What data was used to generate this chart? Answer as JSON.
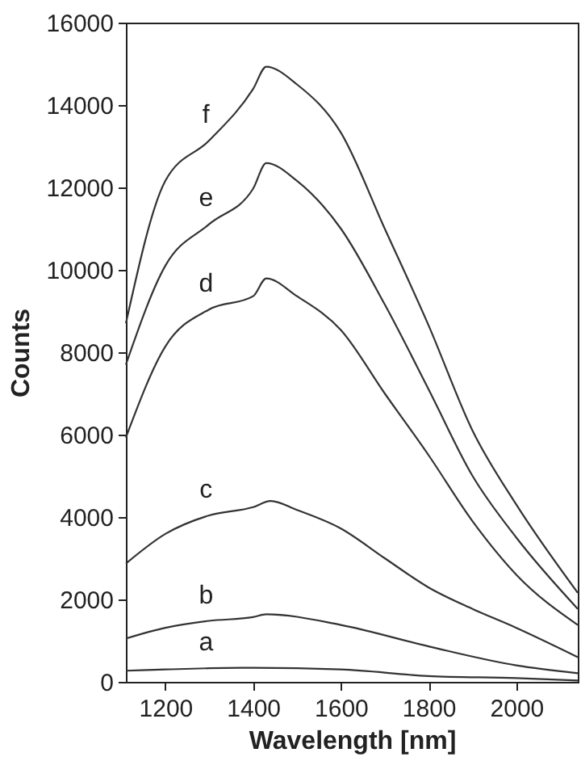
{
  "chart_data": {
    "type": "line",
    "xlabel": "Wavelength [nm]",
    "ylabel": "Counts",
    "xlim": [
      1110,
      2140
    ],
    "ylim": [
      0,
      16000
    ],
    "xticks": [
      1200,
      1400,
      1600,
      1800,
      2000
    ],
    "yticks": [
      0,
      2000,
      4000,
      6000,
      8000,
      10000,
      12000,
      14000,
      16000
    ],
    "grid": false,
    "marker": "none",
    "line_style": "solid",
    "series": [
      {
        "name": "a",
        "color": "#333333",
        "x": [
          1110,
          1200,
          1300,
          1400,
          1600,
          1800,
          2000,
          2140
        ],
        "values": [
          270,
          300,
          330,
          340,
          300,
          140,
          90,
          30
        ]
      },
      {
        "name": "b",
        "color": "#333333",
        "x": [
          1110,
          1200,
          1300,
          1400,
          1430,
          1600,
          1800,
          2000,
          2140
        ],
        "values": [
          1050,
          1310,
          1480,
          1570,
          1640,
          1380,
          860,
          400,
          210
        ]
      },
      {
        "name": "c",
        "color": "#333333",
        "x": [
          1110,
          1200,
          1300,
          1400,
          1440,
          1500,
          1600,
          1700,
          1800,
          1900,
          2000,
          2140
        ],
        "values": [
          2870,
          3590,
          4040,
          4240,
          4390,
          4170,
          3720,
          3000,
          2290,
          1770,
          1310,
          600
        ]
      },
      {
        "name": "d",
        "color": "#333333",
        "x": [
          1110,
          1200,
          1300,
          1400,
          1430,
          1500,
          1600,
          1700,
          1800,
          1900,
          2000,
          2140
        ],
        "values": [
          5930,
          8140,
          9040,
          9360,
          9790,
          9360,
          8540,
          7000,
          5500,
          3900,
          2600,
          1380
        ]
      },
      {
        "name": "e",
        "color": "#333333",
        "x": [
          1110,
          1200,
          1300,
          1400,
          1430,
          1500,
          1600,
          1700,
          1800,
          1900,
          2000,
          2140
        ],
        "values": [
          7700,
          10100,
          11110,
          11970,
          12590,
          12160,
          11000,
          9160,
          7100,
          5000,
          3500,
          1770
        ]
      },
      {
        "name": "f",
        "color": "#333333",
        "x": [
          1110,
          1200,
          1300,
          1400,
          1430,
          1500,
          1600,
          1700,
          1800,
          1900,
          2000,
          2140
        ],
        "values": [
          8700,
          12160,
          13140,
          14390,
          14930,
          14500,
          13330,
          11000,
          8650,
          6100,
          4300,
          2160
        ]
      }
    ]
  }
}
